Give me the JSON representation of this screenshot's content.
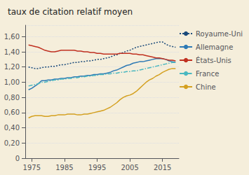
{
  "chart_data": {
    "type": "line",
    "title": "taux de citation relatif moyen",
    "x": [
      1974,
      1975,
      1976,
      1977,
      1978,
      1979,
      1980,
      1981,
      1982,
      1983,
      1984,
      1985,
      1986,
      1987,
      1988,
      1989,
      1990,
      1991,
      1992,
      1993,
      1994,
      1995,
      1996,
      1997,
      1998,
      1999,
      2000,
      2001,
      2002,
      2003,
      2004,
      2005,
      2006,
      2007,
      2008,
      2009,
      2010,
      2011,
      2012,
      2013,
      2014,
      2015,
      2016,
      2017,
      2018,
      2019
    ],
    "series": [
      {
        "name": "Royaume-Uni",
        "color": "#1a4a7a",
        "line_style": "dotted",
        "values": [
          1.2,
          1.19,
          1.18,
          1.18,
          1.19,
          1.2,
          1.2,
          1.21,
          1.21,
          1.22,
          1.23,
          1.23,
          1.24,
          1.25,
          1.26,
          1.26,
          1.27,
          1.27,
          1.28,
          1.28,
          1.29,
          1.3,
          1.3,
          1.31,
          1.32,
          1.33,
          1.35,
          1.36,
          1.38,
          1.39,
          1.41,
          1.42,
          1.44,
          1.46,
          1.47,
          1.48,
          1.49,
          1.5,
          1.51,
          1.52,
          1.53,
          1.53,
          1.5,
          1.48,
          1.47,
          1.46
        ]
      },
      {
        "name": "Allemagne",
        "color": "#2e7ab5",
        "line_style": "solid",
        "values": [
          0.9,
          0.92,
          0.95,
          0.98,
          1.02,
          1.02,
          1.03,
          1.03,
          1.04,
          1.04,
          1.05,
          1.05,
          1.06,
          1.06,
          1.07,
          1.07,
          1.08,
          1.08,
          1.09,
          1.09,
          1.1,
          1.1,
          1.11,
          1.11,
          1.12,
          1.13,
          1.15,
          1.16,
          1.18,
          1.2,
          1.22,
          1.23,
          1.25,
          1.26,
          1.27,
          1.27,
          1.28,
          1.29,
          1.3,
          1.31,
          1.31,
          1.31,
          1.3,
          1.28,
          1.27,
          1.26
        ]
      },
      {
        "name": "États-Unis",
        "color": "#c03020",
        "line_style": "solid",
        "values": [
          1.49,
          1.48,
          1.47,
          1.46,
          1.44,
          1.42,
          1.41,
          1.4,
          1.4,
          1.41,
          1.42,
          1.42,
          1.42,
          1.42,
          1.42,
          1.41,
          1.41,
          1.4,
          1.4,
          1.39,
          1.39,
          1.38,
          1.38,
          1.37,
          1.37,
          1.37,
          1.37,
          1.37,
          1.38,
          1.38,
          1.38,
          1.38,
          1.37,
          1.37,
          1.36,
          1.36,
          1.35,
          1.34,
          1.33,
          1.32,
          1.32,
          1.31,
          1.3,
          1.29,
          1.29,
          1.28
        ]
      },
      {
        "name": "France",
        "color": "#4ab8c0",
        "line_style": "dashdot",
        "values": [
          0.95,
          0.96,
          0.97,
          0.98,
          1.0,
          1.0,
          1.01,
          1.02,
          1.03,
          1.03,
          1.04,
          1.04,
          1.05,
          1.05,
          1.06,
          1.06,
          1.07,
          1.07,
          1.08,
          1.08,
          1.09,
          1.09,
          1.1,
          1.1,
          1.11,
          1.11,
          1.12,
          1.12,
          1.13,
          1.13,
          1.14,
          1.14,
          1.15,
          1.15,
          1.16,
          1.17,
          1.18,
          1.19,
          1.2,
          1.21,
          1.22,
          1.23,
          1.24,
          1.25,
          1.26,
          1.26
        ]
      },
      {
        "name": "Chine",
        "color": "#d4a020",
        "line_style": "solid",
        "values": [
          0.53,
          0.55,
          0.56,
          0.56,
          0.56,
          0.55,
          0.55,
          0.56,
          0.56,
          0.57,
          0.57,
          0.57,
          0.58,
          0.58,
          0.58,
          0.57,
          0.57,
          0.58,
          0.58,
          0.59,
          0.6,
          0.61,
          0.62,
          0.63,
          0.65,
          0.67,
          0.7,
          0.73,
          0.77,
          0.8,
          0.82,
          0.83,
          0.85,
          0.88,
          0.92,
          0.96,
          1.0,
          1.03,
          1.05,
          1.08,
          1.1,
          1.13,
          1.15,
          1.17,
          1.18,
          1.18
        ]
      }
    ],
    "xlim": [
      1973,
      2020
    ],
    "xticks": [
      1975,
      1985,
      1995,
      2005,
      2015
    ],
    "ylim": [
      0,
      1.75
    ],
    "yticks": [
      0,
      {
        "value": 0.2,
        "label": "0,20"
      },
      {
        "value": 0.4,
        "label": "0,40"
      },
      {
        "value": 0.6,
        "label": "0,60"
      },
      {
        "value": 0.8,
        "label": "0,80"
      },
      {
        "value": 1.0,
        "label": "1,00"
      },
      {
        "value": 1.2,
        "label": "1,20"
      },
      {
        "value": 1.4,
        "label": "1,40"
      },
      {
        "value": 1.6,
        "label": "1,60"
      }
    ],
    "grid": "y",
    "legend": "right"
  }
}
